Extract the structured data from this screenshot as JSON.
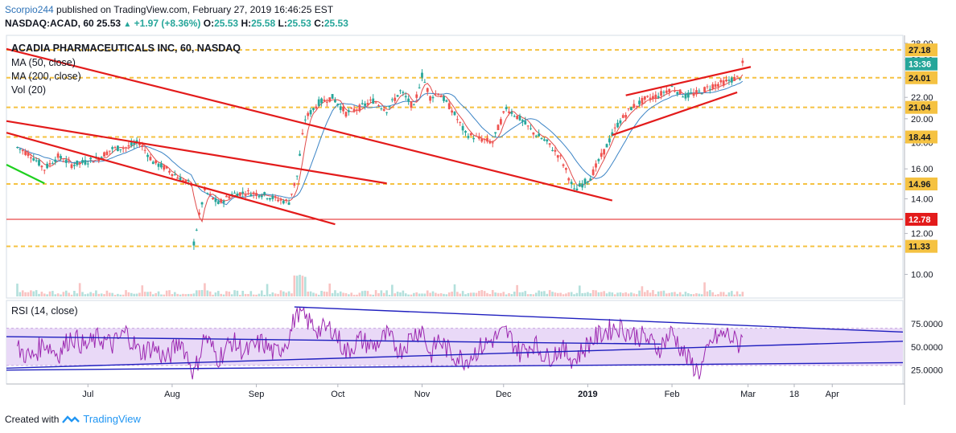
{
  "header": {
    "author": "Scorpio244",
    "published_text": " published on TradingView.com, February 27, 2019 16:46:25 EST",
    "symbol_interval": "NASDAQ:ACAD, 60",
    "last": "25.53",
    "change": "+1.97 (+8.36%)",
    "o_label": "O:",
    "o": "25.53",
    "h_label": "H:",
    "h": "25.58",
    "l_label": "L:",
    "l": "25.53",
    "c_label": "C:",
    "c": "25.53"
  },
  "pane": {
    "title": "ACADIA PHARMACEUTICALS INC, 60, NASDAQ",
    "ma50": "MA (50, close)",
    "ma200": "MA (200, close)",
    "vol": "Vol (20)",
    "rsi": "RSI (14, close)"
  },
  "footer": {
    "created_with": "Created with",
    "brand": "TradingView"
  },
  "colors": {
    "candle_up": "#26a69a",
    "candle_down": "#ef5350",
    "trendline": "#e31b1b",
    "level": "#f5c242",
    "ma50": "#e04b4b",
    "ma200": "#3d85c6",
    "rsi_line": "#9c27b0",
    "rsi_band": "#e9d9f7",
    "rsi_trend": "#1f1fbf",
    "green_line": "#1fd01f",
    "price_tag": "#26a69a",
    "red_tag": "#e31b1b"
  },
  "chart_data": {
    "type": "line",
    "title": "ACADIA PHARMACEUTICALS INC, 60, NASDAQ",
    "price_axis": {
      "ticks": [
        "28.00",
        "26.00",
        "24.00",
        "22.00",
        "20.00",
        "18.00",
        "16.00",
        "14.00",
        "12.00",
        "10.00"
      ],
      "ylim": [
        9.0,
        29.0
      ],
      "scale": "log"
    },
    "rsi_axis": {
      "ticks": [
        "75.0000",
        "50.0000",
        "25.0000"
      ],
      "ylim": [
        10,
        100
      ]
    },
    "time_axis": [
      "Jul",
      "Aug",
      "Sep",
      "Oct",
      "Nov",
      "Dec",
      "2019",
      "Feb",
      "Mar",
      "18",
      "Apr"
    ],
    "price_levels": [
      {
        "label": "27.18",
        "value": 27.18
      },
      {
        "label": "24.01",
        "value": 24.01
      },
      {
        "label": "21.04",
        "value": 21.04
      },
      {
        "label": "18.44",
        "value": 18.44
      },
      {
        "label": "14.96",
        "value": 14.96
      },
      {
        "label": "12.78",
        "value": 12.78
      },
      {
        "label": "11.33",
        "value": 11.33
      }
    ],
    "last_price_tag": "13:36",
    "series": [
      {
        "name": "ACAD",
        "values": [
          [
            "2018-06-05",
            17.6
          ],
          [
            "2018-06-10",
            17.0
          ],
          [
            "2018-06-15",
            16.0
          ],
          [
            "2018-06-20",
            16.9
          ],
          [
            "2018-06-25",
            16.3
          ],
          [
            "2018-06-30",
            16.5
          ],
          [
            "2018-07-05",
            16.8
          ],
          [
            "2018-07-10",
            17.5
          ],
          [
            "2018-07-15",
            17.6
          ],
          [
            "2018-07-20",
            18.0
          ],
          [
            "2018-07-25",
            16.5
          ],
          [
            "2018-07-30",
            16.0
          ],
          [
            "2018-08-04",
            15.3
          ],
          [
            "2018-08-08",
            14.9
          ],
          [
            "2018-08-09",
            11.5
          ],
          [
            "2018-08-13",
            14.5
          ],
          [
            "2018-08-18",
            13.7
          ],
          [
            "2018-08-23",
            14.3
          ],
          [
            "2018-08-28",
            14.4
          ],
          [
            "2018-09-03",
            14.3
          ],
          [
            "2018-09-08",
            14.0
          ],
          [
            "2018-09-13",
            13.8
          ],
          [
            "2018-09-16",
            15.5
          ],
          [
            "2018-09-19",
            20.0
          ],
          [
            "2018-09-24",
            21.5
          ],
          [
            "2018-09-29",
            22.0
          ],
          [
            "2018-10-04",
            20.5
          ],
          [
            "2018-10-09",
            21.0
          ],
          [
            "2018-10-14",
            21.7
          ],
          [
            "2018-10-19",
            20.8
          ],
          [
            "2018-10-24",
            22.6
          ],
          [
            "2018-10-29",
            21.0
          ],
          [
            "2018-11-01",
            24.3
          ],
          [
            "2018-11-04",
            22.0
          ],
          [
            "2018-11-07",
            22.5
          ],
          [
            "2018-11-12",
            20.8
          ],
          [
            "2018-11-17",
            18.7
          ],
          [
            "2018-11-22",
            18.3
          ],
          [
            "2018-11-27",
            18.0
          ],
          [
            "2018-12-02",
            21.0
          ],
          [
            "2018-12-07",
            20.0
          ],
          [
            "2018-12-12",
            18.8
          ],
          [
            "2018-12-17",
            18.0
          ],
          [
            "2018-12-22",
            16.8
          ],
          [
            "2018-12-27",
            14.5
          ],
          [
            "2019-01-02",
            15.4
          ],
          [
            "2019-01-07",
            17.3
          ],
          [
            "2019-01-12",
            19.5
          ],
          [
            "2019-01-17",
            21.0
          ],
          [
            "2019-01-22",
            21.8
          ],
          [
            "2019-01-27",
            22.2
          ],
          [
            "2019-02-01",
            23.0
          ],
          [
            "2019-02-06",
            22.1
          ],
          [
            "2019-02-11",
            22.5
          ],
          [
            "2019-02-16",
            23.2
          ],
          [
            "2019-02-21",
            23.6
          ],
          [
            "2019-02-26",
            24.1
          ],
          [
            "2019-02-27",
            25.53
          ]
        ]
      }
    ],
    "rsi_values": [
      [
        "2018-06-05",
        48
      ],
      [
        "2018-06-10",
        38
      ],
      [
        "2018-06-15",
        55
      ],
      [
        "2018-06-20",
        42
      ],
      [
        "2018-06-25",
        62
      ],
      [
        "2018-06-30",
        50
      ],
      [
        "2018-07-05",
        60
      ],
      [
        "2018-07-10",
        52
      ],
      [
        "2018-07-15",
        66
      ],
      [
        "2018-07-20",
        44
      ],
      [
        "2018-07-25",
        50
      ],
      [
        "2018-07-30",
        36
      ],
      [
        "2018-08-04",
        58
      ],
      [
        "2018-08-08",
        30
      ],
      [
        "2018-08-09",
        20
      ],
      [
        "2018-08-13",
        62
      ],
      [
        "2018-08-18",
        38
      ],
      [
        "2018-08-23",
        56
      ],
      [
        "2018-08-28",
        44
      ],
      [
        "2018-09-03",
        55
      ],
      [
        "2018-09-08",
        42
      ],
      [
        "2018-09-13",
        60
      ],
      [
        "2018-09-16",
        90
      ],
      [
        "2018-09-19",
        80
      ],
      [
        "2018-09-24",
        68
      ],
      [
        "2018-09-29",
        70
      ],
      [
        "2018-10-04",
        44
      ],
      [
        "2018-10-09",
        58
      ],
      [
        "2018-10-14",
        50
      ],
      [
        "2018-10-19",
        62
      ],
      [
        "2018-10-24",
        46
      ],
      [
        "2018-10-29",
        64
      ],
      [
        "2018-11-01",
        70
      ],
      [
        "2018-11-04",
        40
      ],
      [
        "2018-11-07",
        58
      ],
      [
        "2018-11-12",
        42
      ],
      [
        "2018-11-17",
        36
      ],
      [
        "2018-11-22",
        48
      ],
      [
        "2018-11-27",
        58
      ],
      [
        "2018-12-02",
        66
      ],
      [
        "2018-12-07",
        44
      ],
      [
        "2018-12-12",
        54
      ],
      [
        "2018-12-17",
        38
      ],
      [
        "2018-12-22",
        48
      ],
      [
        "2018-12-27",
        36
      ],
      [
        "2019-01-02",
        56
      ],
      [
        "2019-01-07",
        66
      ],
      [
        "2019-01-12",
        72
      ],
      [
        "2019-01-17",
        64
      ],
      [
        "2019-01-22",
        60
      ],
      [
        "2019-01-27",
        48
      ],
      [
        "2019-02-01",
        66
      ],
      [
        "2019-02-06",
        40
      ],
      [
        "2019-02-11",
        22
      ],
      [
        "2019-02-16",
        58
      ],
      [
        "2019-02-21",
        64
      ],
      [
        "2019-02-26",
        52
      ],
      [
        "2019-02-27",
        70
      ]
    ],
    "grid": false,
    "legend": "top-left"
  }
}
